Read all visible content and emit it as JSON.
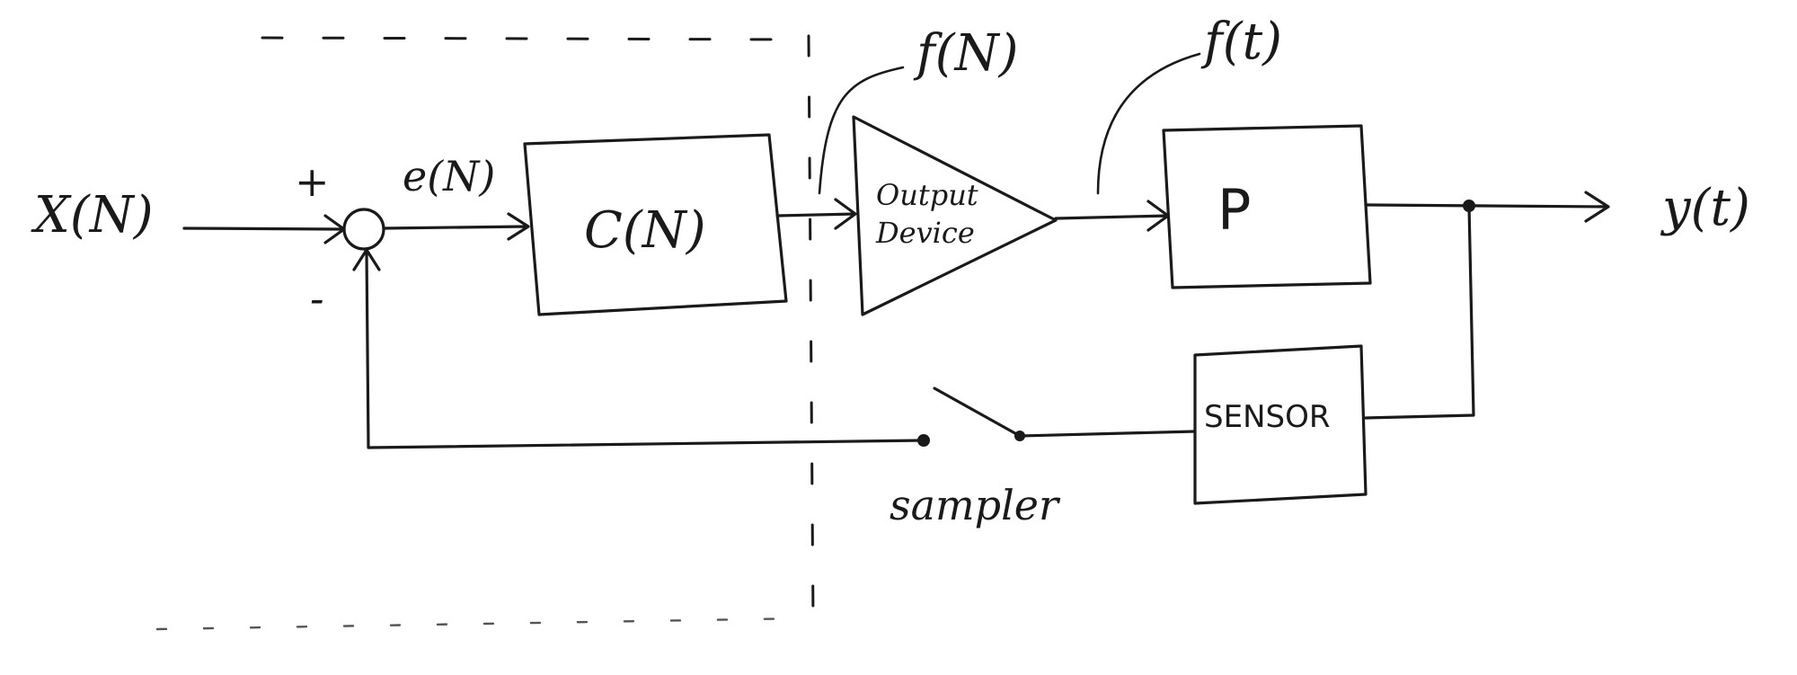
{
  "diagram": {
    "input_label": "X(N)",
    "plus_sign": "+",
    "minus_sign": "-",
    "error_label": "e(N)",
    "controller_label": "C(N)",
    "fn_label": "f(N)",
    "output_device_line1": "Output",
    "output_device_line2": "Device",
    "ft_label": "f(t)",
    "plant_label": "P",
    "output_label": "y(t)",
    "sensor_label": "SENSOR",
    "sampler_label": "sampler"
  }
}
